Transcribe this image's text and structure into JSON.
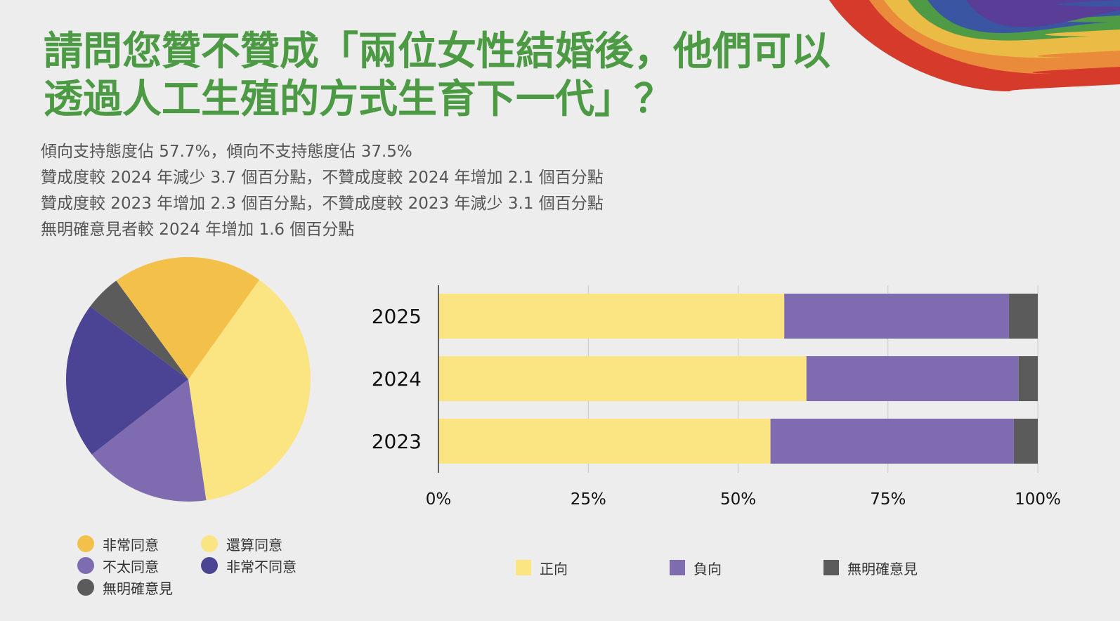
{
  "title": {
    "line1": "請問您贊不贊成「兩位女性結婚後，他們可以",
    "line2": "透過人工生殖的方式生育下一代」？"
  },
  "summary": [
    "傾向支持態度佔 57.7%，傾向不支持態度佔 37.5%",
    "贊成度較 2024 年減少 3.7 個百分點，不贊成度較 2024 年增加 2.1 個百分點",
    "贊成度較 2023 年增加 2.3 個百分點，不贊成度較 2023 年減少 3.1 個百分點",
    "無明確意見者較 2024 年增加 1.6 個百分點"
  ],
  "colors": {
    "background": "#ededee",
    "title": "#4c9a44",
    "strongly_agree": "#f3c04a",
    "somewhat_agree": "#fbe482",
    "somewhat_disagree": "#7f6bb0",
    "strongly_disagree": "#4b4393",
    "no_opinion": "#5b5b5b",
    "rainbow": [
      "#d63a2b",
      "#e98b3a",
      "#eabb45",
      "#4e9a45",
      "#3a56a3",
      "#5a3d96"
    ]
  },
  "chart_data": [
    {
      "type": "pie",
      "legend_position": "bottom",
      "slices": [
        {
          "label": "還算同意",
          "value": 37.8,
          "color": "#fbe482"
        },
        {
          "label": "不太同意",
          "value": 16.8,
          "color": "#7f6bb0"
        },
        {
          "label": "非常不同意",
          "value": 20.7,
          "color": "#4b4393"
        },
        {
          "label": "無明確意見",
          "value": 4.8,
          "color": "#5b5b5b"
        },
        {
          "label": "非常同意",
          "value": 19.9,
          "color": "#f3c04a"
        }
      ],
      "legend": [
        {
          "label": "非常同意",
          "color": "#f3c04a"
        },
        {
          "label": "還算同意",
          "color": "#fbe482"
        },
        {
          "label": "不太同意",
          "color": "#7f6bb0"
        },
        {
          "label": "非常不同意",
          "color": "#4b4393"
        },
        {
          "label": "無明確意見",
          "color": "#5b5b5b"
        }
      ]
    },
    {
      "type": "bar",
      "orientation": "horizontal",
      "stacked": true,
      "categories": [
        "2025",
        "2024",
        "2023"
      ],
      "series": [
        {
          "name": "正向",
          "values": [
            57.7,
            61.4,
            55.4
          ],
          "color": "#fbe482"
        },
        {
          "name": "負向",
          "values": [
            37.5,
            35.4,
            40.6
          ],
          "color": "#7f6bb0"
        },
        {
          "name": "無明確意見",
          "values": [
            4.8,
            3.2,
            4.0
          ],
          "color": "#5b5b5b"
        }
      ],
      "xlim": [
        0,
        100
      ],
      "xticks": [
        "0%",
        "25%",
        "50%",
        "75%",
        "100%"
      ],
      "grid": true,
      "legend_position": "bottom"
    }
  ]
}
